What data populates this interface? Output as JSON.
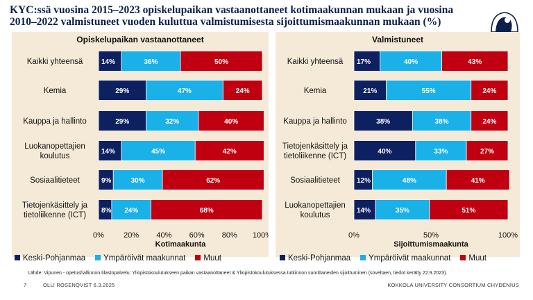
{
  "title": "KYC:ssä vuosina 2015–2023 opiskelupaikan vastaanottaneet kotimaakunnan mukaan ja vuosina 2010–2022 valmistuneet vuoden kuluttua valmistumisesta sijoittumismaakunnan mukaan (%)",
  "source": "Lähde: Vipunen - opetushallinnon tilastopalvelu: Yliopistokoulutukseen paikan vastaanottaneet & Yliopistokoulutuksessa tutkinnon suorittaneiden sijoittuminen (soveltaen, tiedot kerätty 22.9.2023).",
  "footer": {
    "page": "7",
    "author": "OLLI ROSENQVIST 6.3.2025",
    "org": "KOKKOLA UNIVERSITY CONSORTIUM CHYDENIUS"
  },
  "colors": {
    "Keski-Pohjanmaa": "#0d2060",
    "Ympäröivät maakunnat": "#1ab0e8",
    "Muut": "#c00010"
  },
  "chart_data": [
    {
      "type": "bar",
      "orientation": "horizontal",
      "stacked": true,
      "title": "Opiskelupaikan vastaanottaneet",
      "xlabel": "Kotimaakunta",
      "xlim": [
        0,
        100
      ],
      "x_ticks": [
        "0%",
        "20%",
        "40%",
        "60%",
        "80%",
        "100%"
      ],
      "x_tick_values": [
        0,
        20,
        40,
        60,
        80,
        100
      ],
      "legend": "bottom",
      "categories": [
        "Kaikki yhteensä",
        "Kemia",
        "Kauppa ja hallinto",
        "Luokanopettajien koulutus",
        "Sosiaalitieteet",
        "Tietojenkäsittely ja tietoliikenne (ICT)"
      ],
      "category_lines": [
        [
          "Kaikki yhteensä"
        ],
        [
          "Kemia"
        ],
        [
          "Kauppa ja hallinto"
        ],
        [
          "Luokanopettajien",
          "koulutus"
        ],
        [
          "Sosiaalitieteet"
        ],
        [
          "Tietojenkäsittely ja",
          "tietoliikenne (ICT)"
        ]
      ],
      "series": [
        {
          "name": "Keski-Pohjanmaa",
          "values": [
            14,
            29,
            29,
            14,
            9,
            8
          ]
        },
        {
          "name": "Ympäröivät maakunnat",
          "values": [
            36,
            47,
            32,
            45,
            30,
            24
          ]
        },
        {
          "name": "Muut",
          "values": [
            50,
            24,
            40,
            42,
            62,
            68
          ]
        }
      ]
    },
    {
      "type": "bar",
      "orientation": "horizontal",
      "stacked": true,
      "title": "Valmistuneet",
      "xlabel": "Sijoittumismaakunta",
      "xlim": [
        0,
        100
      ],
      "x_ticks": [
        "0%",
        "50%",
        "100%"
      ],
      "x_tick_values": [
        0,
        50,
        100
      ],
      "legend": "bottom",
      "categories": [
        "Kaikki yhteensä",
        "Kemia",
        "Kauppa ja hallinto",
        "Tietojenkäsittely ja tietoliikenne (ICT)",
        "Sosiaalitieteet",
        "Luokanopettajien koulutus"
      ],
      "category_lines": [
        [
          "Kaikki yhteensä"
        ],
        [
          "Kemia"
        ],
        [
          "Kauppa ja hallinto"
        ],
        [
          "Tietojenkäsittely ja",
          "tietoliikenne (ICT)"
        ],
        [
          "Sosiaalitieteet"
        ],
        [
          "Luokanopettajien",
          "koulutus"
        ]
      ],
      "series": [
        {
          "name": "Keski-Pohjanmaa",
          "values": [
            17,
            21,
            38,
            40,
            12,
            14
          ]
        },
        {
          "name": "Ympäröivät maakunnat",
          "values": [
            40,
            55,
            38,
            33,
            48,
            35
          ]
        },
        {
          "name": "Muut",
          "values": [
            43,
            24,
            24,
            27,
            41,
            51
          ]
        }
      ]
    }
  ]
}
